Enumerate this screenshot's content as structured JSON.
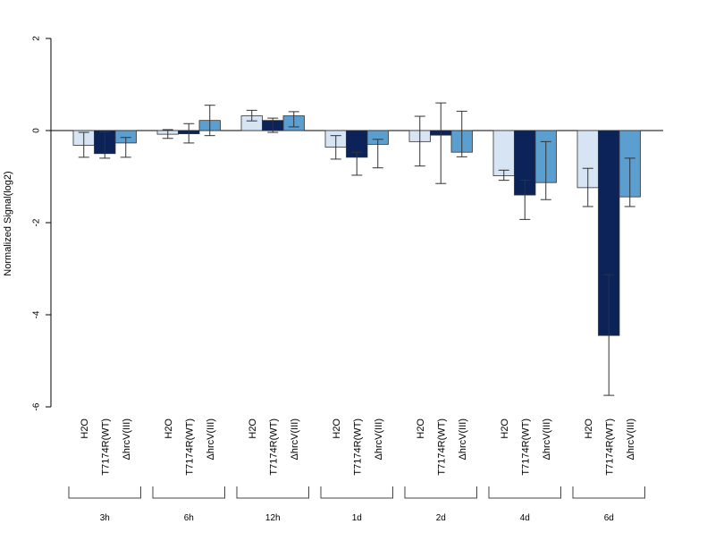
{
  "chart_data": {
    "type": "bar",
    "ylabel": "Normalized Signal(log2)",
    "ylim": [
      -6,
      2
    ],
    "yticks": [
      2,
      0,
      -2,
      -4,
      -6
    ],
    "groups": [
      "3h",
      "6h",
      "12h",
      "1d",
      "2d",
      "4d",
      "6d"
    ],
    "bar_labels": [
      "H2O",
      "T7174R(WT)",
      "ΔhrcV(III)"
    ],
    "colors": {
      "H2O": "#d6e4f3",
      "T7174R(WT)": "#0b2358",
      "ΔhrcV(III)": "#5a9fd0"
    },
    "series": [
      {
        "name": "H2O",
        "values": [
          -0.32,
          -0.08,
          0.32,
          -0.36,
          -0.24,
          -0.98,
          -1.24
        ],
        "err_low": [
          -0.58,
          -0.17,
          0.21,
          -0.62,
          -0.77,
          -1.08,
          -1.65
        ],
        "err_high": [
          -0.04,
          0.02,
          0.44,
          -0.11,
          0.31,
          -0.86,
          -0.82
        ]
      },
      {
        "name": "T7174R(WT)",
        "values": [
          -0.5,
          -0.07,
          0.22,
          -0.58,
          -0.1,
          -1.4,
          -4.45
        ],
        "err_low": [
          -0.6,
          -0.27,
          -0.04,
          -0.97,
          -1.15,
          -1.93,
          -5.75
        ],
        "err_high": [
          -0.03,
          0.15,
          0.27,
          -0.47,
          0.6,
          -1.08,
          -3.13
        ]
      },
      {
        "name": "ΔhrcV(III)",
        "values": [
          -0.27,
          0.22,
          0.32,
          -0.3,
          -0.47,
          -1.13,
          -1.44
        ],
        "err_low": [
          -0.58,
          -0.11,
          0.08,
          -0.81,
          -0.57,
          -1.5,
          -1.65
        ],
        "err_high": [
          -0.15,
          0.55,
          0.41,
          -0.19,
          0.42,
          -0.24,
          -0.6
        ]
      }
    ],
    "grid": false,
    "legend": "none"
  }
}
